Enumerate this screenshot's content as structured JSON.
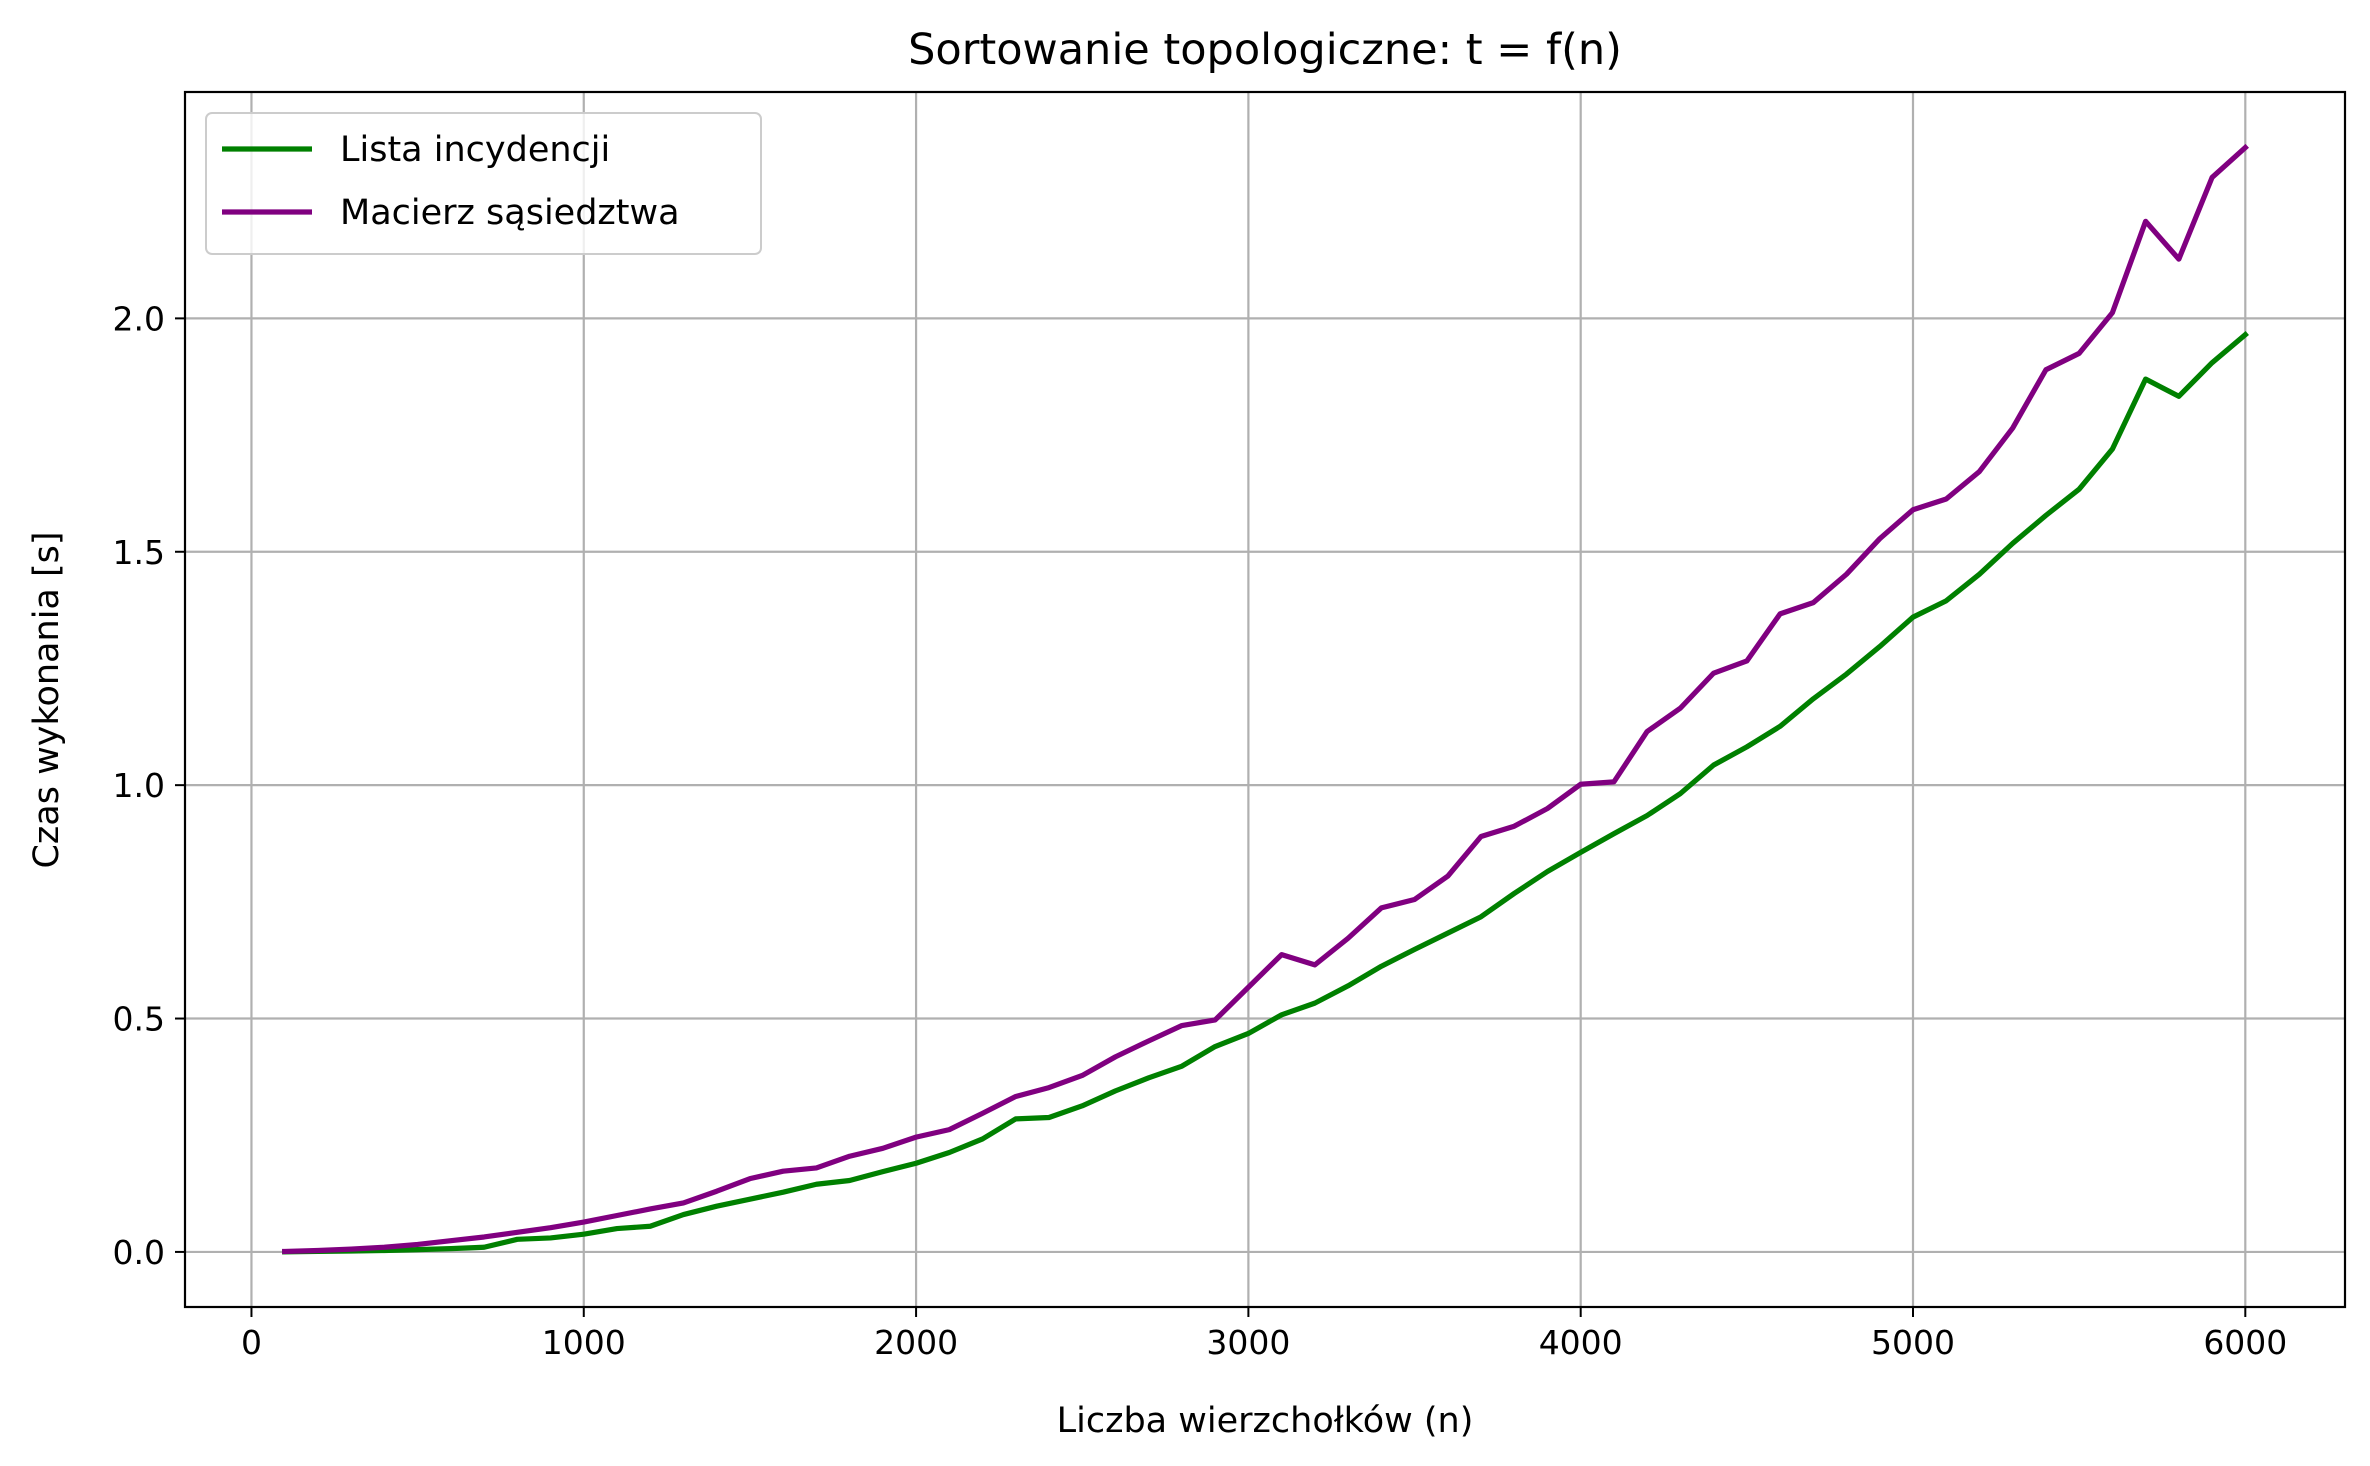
{
  "chart_data": {
    "type": "line",
    "title": "Sortowanie topologiczne: t = f(n)",
    "xlabel": "Liczba wierzchołków (n)",
    "ylabel": "Czas wykonania [s]",
    "xlim": [
      -200,
      6300
    ],
    "ylim": [
      -0.118,
      2.485
    ],
    "xticks": [
      0,
      1000,
      2000,
      3000,
      4000,
      5000,
      6000
    ],
    "xtick_labels": [
      "0",
      "1000",
      "2000",
      "3000",
      "4000",
      "5000",
      "6000"
    ],
    "yticks": [
      0.0,
      0.5,
      1.0,
      1.5,
      2.0
    ],
    "ytick_labels": [
      "0.0",
      "0.5",
      "1.0",
      "1.5",
      "2.0"
    ],
    "grid": true,
    "legend_position": "top-left",
    "x": [
      100,
      200,
      300,
      400,
      500,
      600,
      700,
      800,
      900,
      1000,
      1100,
      1200,
      1300,
      1400,
      1500,
      1600,
      1700,
      1800,
      1900,
      2000,
      2100,
      2200,
      2300,
      2400,
      2500,
      2600,
      2700,
      2800,
      2900,
      3000,
      3100,
      3200,
      3300,
      3400,
      3500,
      3600,
      3700,
      3800,
      3900,
      4000,
      4100,
      4200,
      4300,
      4400,
      4500,
      4600,
      4700,
      4800,
      4900,
      5000,
      5100,
      5200,
      5300,
      5400,
      5500,
      5600,
      5700,
      5800,
      5900,
      6000
    ],
    "series": [
      {
        "name": "Lista incydencji",
        "color": "#008000",
        "values": [
          0.0,
          0.001,
          0.002,
          0.003,
          0.005,
          0.007,
          0.01,
          0.027,
          0.03,
          0.038,
          0.05,
          0.055,
          0.08,
          0.098,
          0.113,
          0.128,
          0.145,
          0.153,
          0.172,
          0.19,
          0.213,
          0.242,
          0.285,
          0.288,
          0.313,
          0.345,
          0.373,
          0.398,
          0.44,
          0.468,
          0.508,
          0.533,
          0.57,
          0.612,
          0.648,
          0.683,
          0.718,
          0.768,
          0.815,
          0.856,
          0.896,
          0.935,
          0.982,
          1.043,
          1.082,
          1.126,
          1.185,
          1.238,
          1.297,
          1.36,
          1.395,
          1.452,
          1.518,
          1.578,
          1.634,
          1.72,
          1.87,
          1.833,
          1.905,
          1.965
        ]
      },
      {
        "name": "Macierz sąsiedztwa",
        "color": "#800080",
        "values": [
          0.001,
          0.003,
          0.006,
          0.01,
          0.016,
          0.024,
          0.032,
          0.042,
          0.052,
          0.064,
          0.078,
          0.092,
          0.105,
          0.13,
          0.157,
          0.173,
          0.18,
          0.205,
          0.222,
          0.246,
          0.262,
          0.297,
          0.333,
          0.352,
          0.378,
          0.418,
          0.452,
          0.485,
          0.497,
          0.567,
          0.637,
          0.615,
          0.672,
          0.737,
          0.755,
          0.805,
          0.89,
          0.912,
          0.95,
          1.002,
          1.007,
          1.115,
          1.165,
          1.24,
          1.266,
          1.367,
          1.391,
          1.452,
          1.528,
          1.59,
          1.613,
          1.672,
          1.765,
          1.89,
          1.925,
          2.012,
          2.208,
          2.127,
          2.302,
          2.366
        ]
      }
    ]
  }
}
